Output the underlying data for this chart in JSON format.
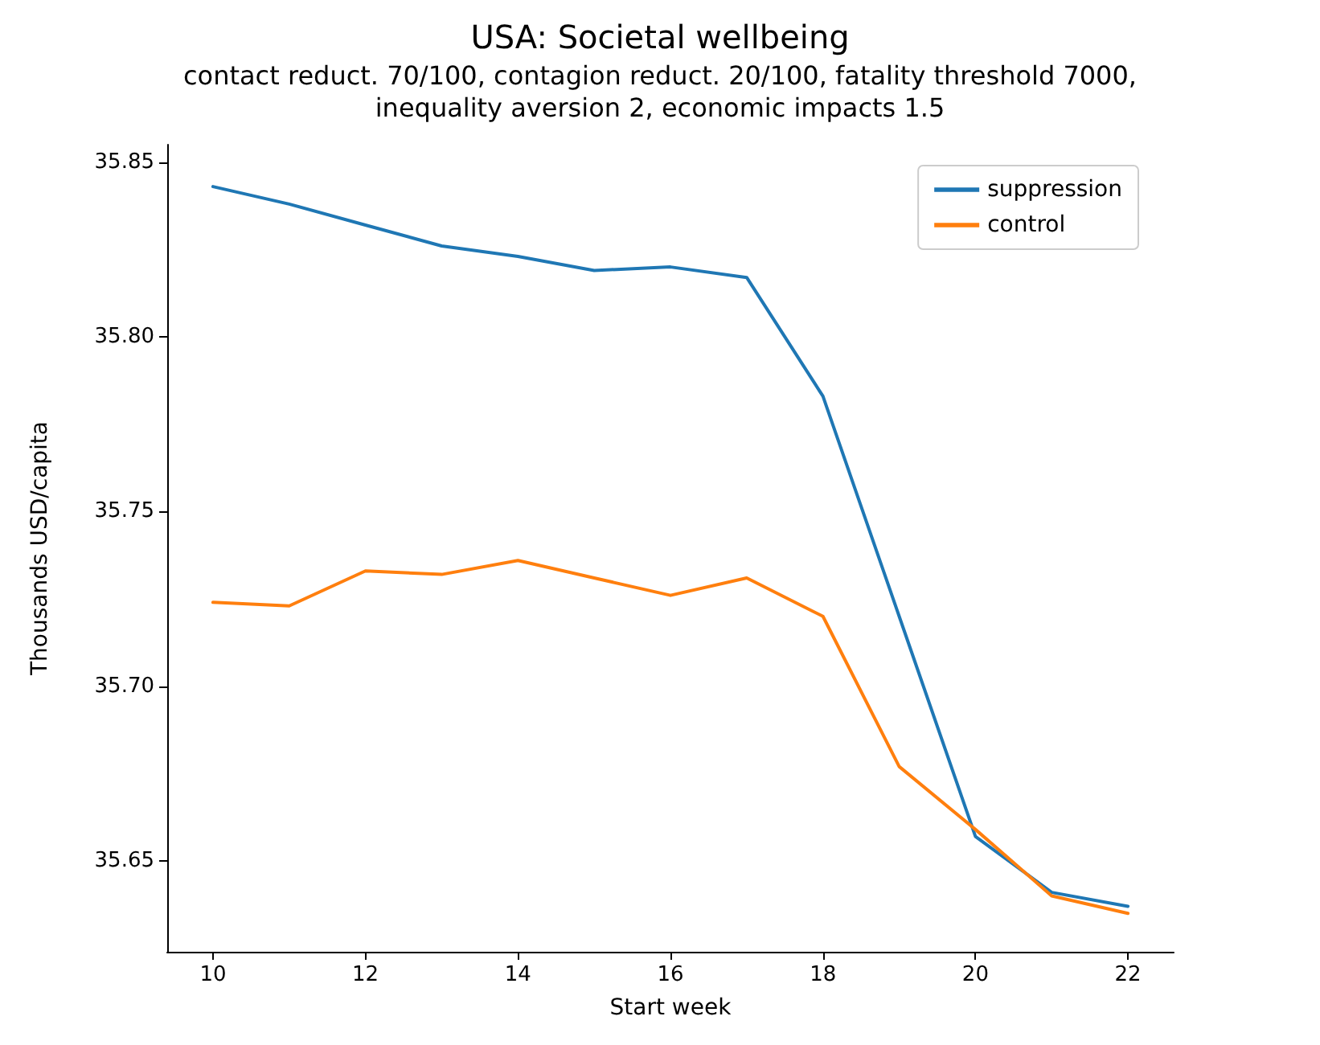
{
  "chart_data": {
    "type": "line",
    "title": "USA: Societal wellbeing",
    "subtitle": "contact reduct. 70/100, contagion reduct. 20/100, fatality threshold 7000,\ninequality aversion 2, economic impacts 1.5",
    "xlabel": "Start week",
    "ylabel": "Thousands USD/capita",
    "x": [
      10,
      11,
      12,
      13,
      14,
      15,
      16,
      17,
      18,
      19,
      20,
      21,
      22
    ],
    "series": [
      {
        "name": "suppression",
        "color": "#1f77b4",
        "values": [
          35.843,
          35.838,
          35.832,
          35.826,
          35.823,
          35.819,
          35.82,
          35.817,
          35.783,
          35.72,
          35.657,
          35.641,
          35.637
        ]
      },
      {
        "name": "control",
        "color": "#ff7f0e",
        "values": [
          35.724,
          35.723,
          35.733,
          35.732,
          35.736,
          35.731,
          35.726,
          35.731,
          35.72,
          35.677,
          35.659,
          35.64,
          35.635
        ]
      }
    ],
    "xlim": [
      9.4,
      22.6
    ],
    "xticks": [
      10,
      12,
      14,
      16,
      18,
      20,
      22
    ],
    "ylim": [
      35.624,
      35.855
    ],
    "yticks": [
      35.65,
      {
        "value": 35.7,
        "label": "35.70"
      },
      35.75,
      {
        "value": 35.8,
        "label": "35.80"
      },
      35.85
    ],
    "grid": false,
    "legend": "top right",
    "marker": "none",
    "line_style": "solid"
  }
}
